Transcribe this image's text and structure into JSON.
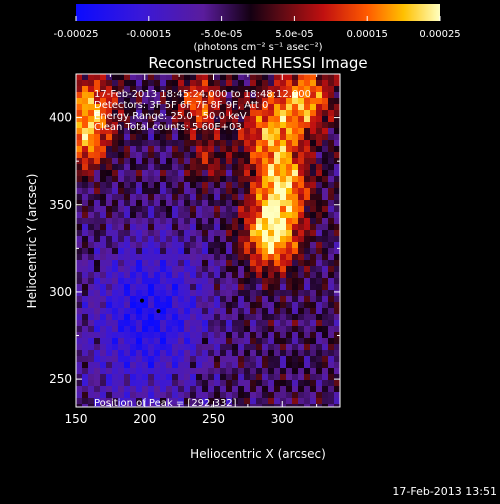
{
  "colorbar": {
    "ticks": [
      "-0.00025",
      "-0.00015",
      "-5.0e-05",
      "5.0e-05",
      "0.00015",
      "0.00025"
    ],
    "tick_values": [
      -0.00025,
      -0.00015,
      -5e-05,
      5e-05,
      0.00015,
      0.00025
    ],
    "range": [
      -0.00025,
      0.00025
    ],
    "unit_label": "(photons cm⁻² s⁻¹ asec⁻²)"
  },
  "chart_data": {
    "type": "heatmap",
    "title": "Reconstructed RHESSI Image",
    "xlabel": "Heliocentric X (arcsec)",
    "ylabel": "Heliocentric Y (arcsec)",
    "xlim": [
      150,
      342
    ],
    "ylim": [
      234,
      425
    ],
    "xticks": [
      150,
      200,
      250,
      300
    ],
    "yticks": [
      250,
      300,
      350,
      400
    ],
    "grid": false,
    "colormap": "rhessi-blue-purple-red-yellow",
    "annotations": [
      "17-Feb-2013 18:45:24.000 to 18:48:12.000",
      "Detectors: 3F 5F 6F 7F 8F 9F, Att 0",
      "Energy Range: 25.0 - 50.0 keV",
      "Clean    Total counts: 5.60E+03"
    ],
    "peak_label": "Position of Peak = [292,332]",
    "peak": [
      292,
      332
    ],
    "markers": [
      [
        198,
        295
      ],
      [
        210,
        289
      ]
    ]
  },
  "footer": {
    "timestamp": "17-Feb-2013 13:51"
  }
}
